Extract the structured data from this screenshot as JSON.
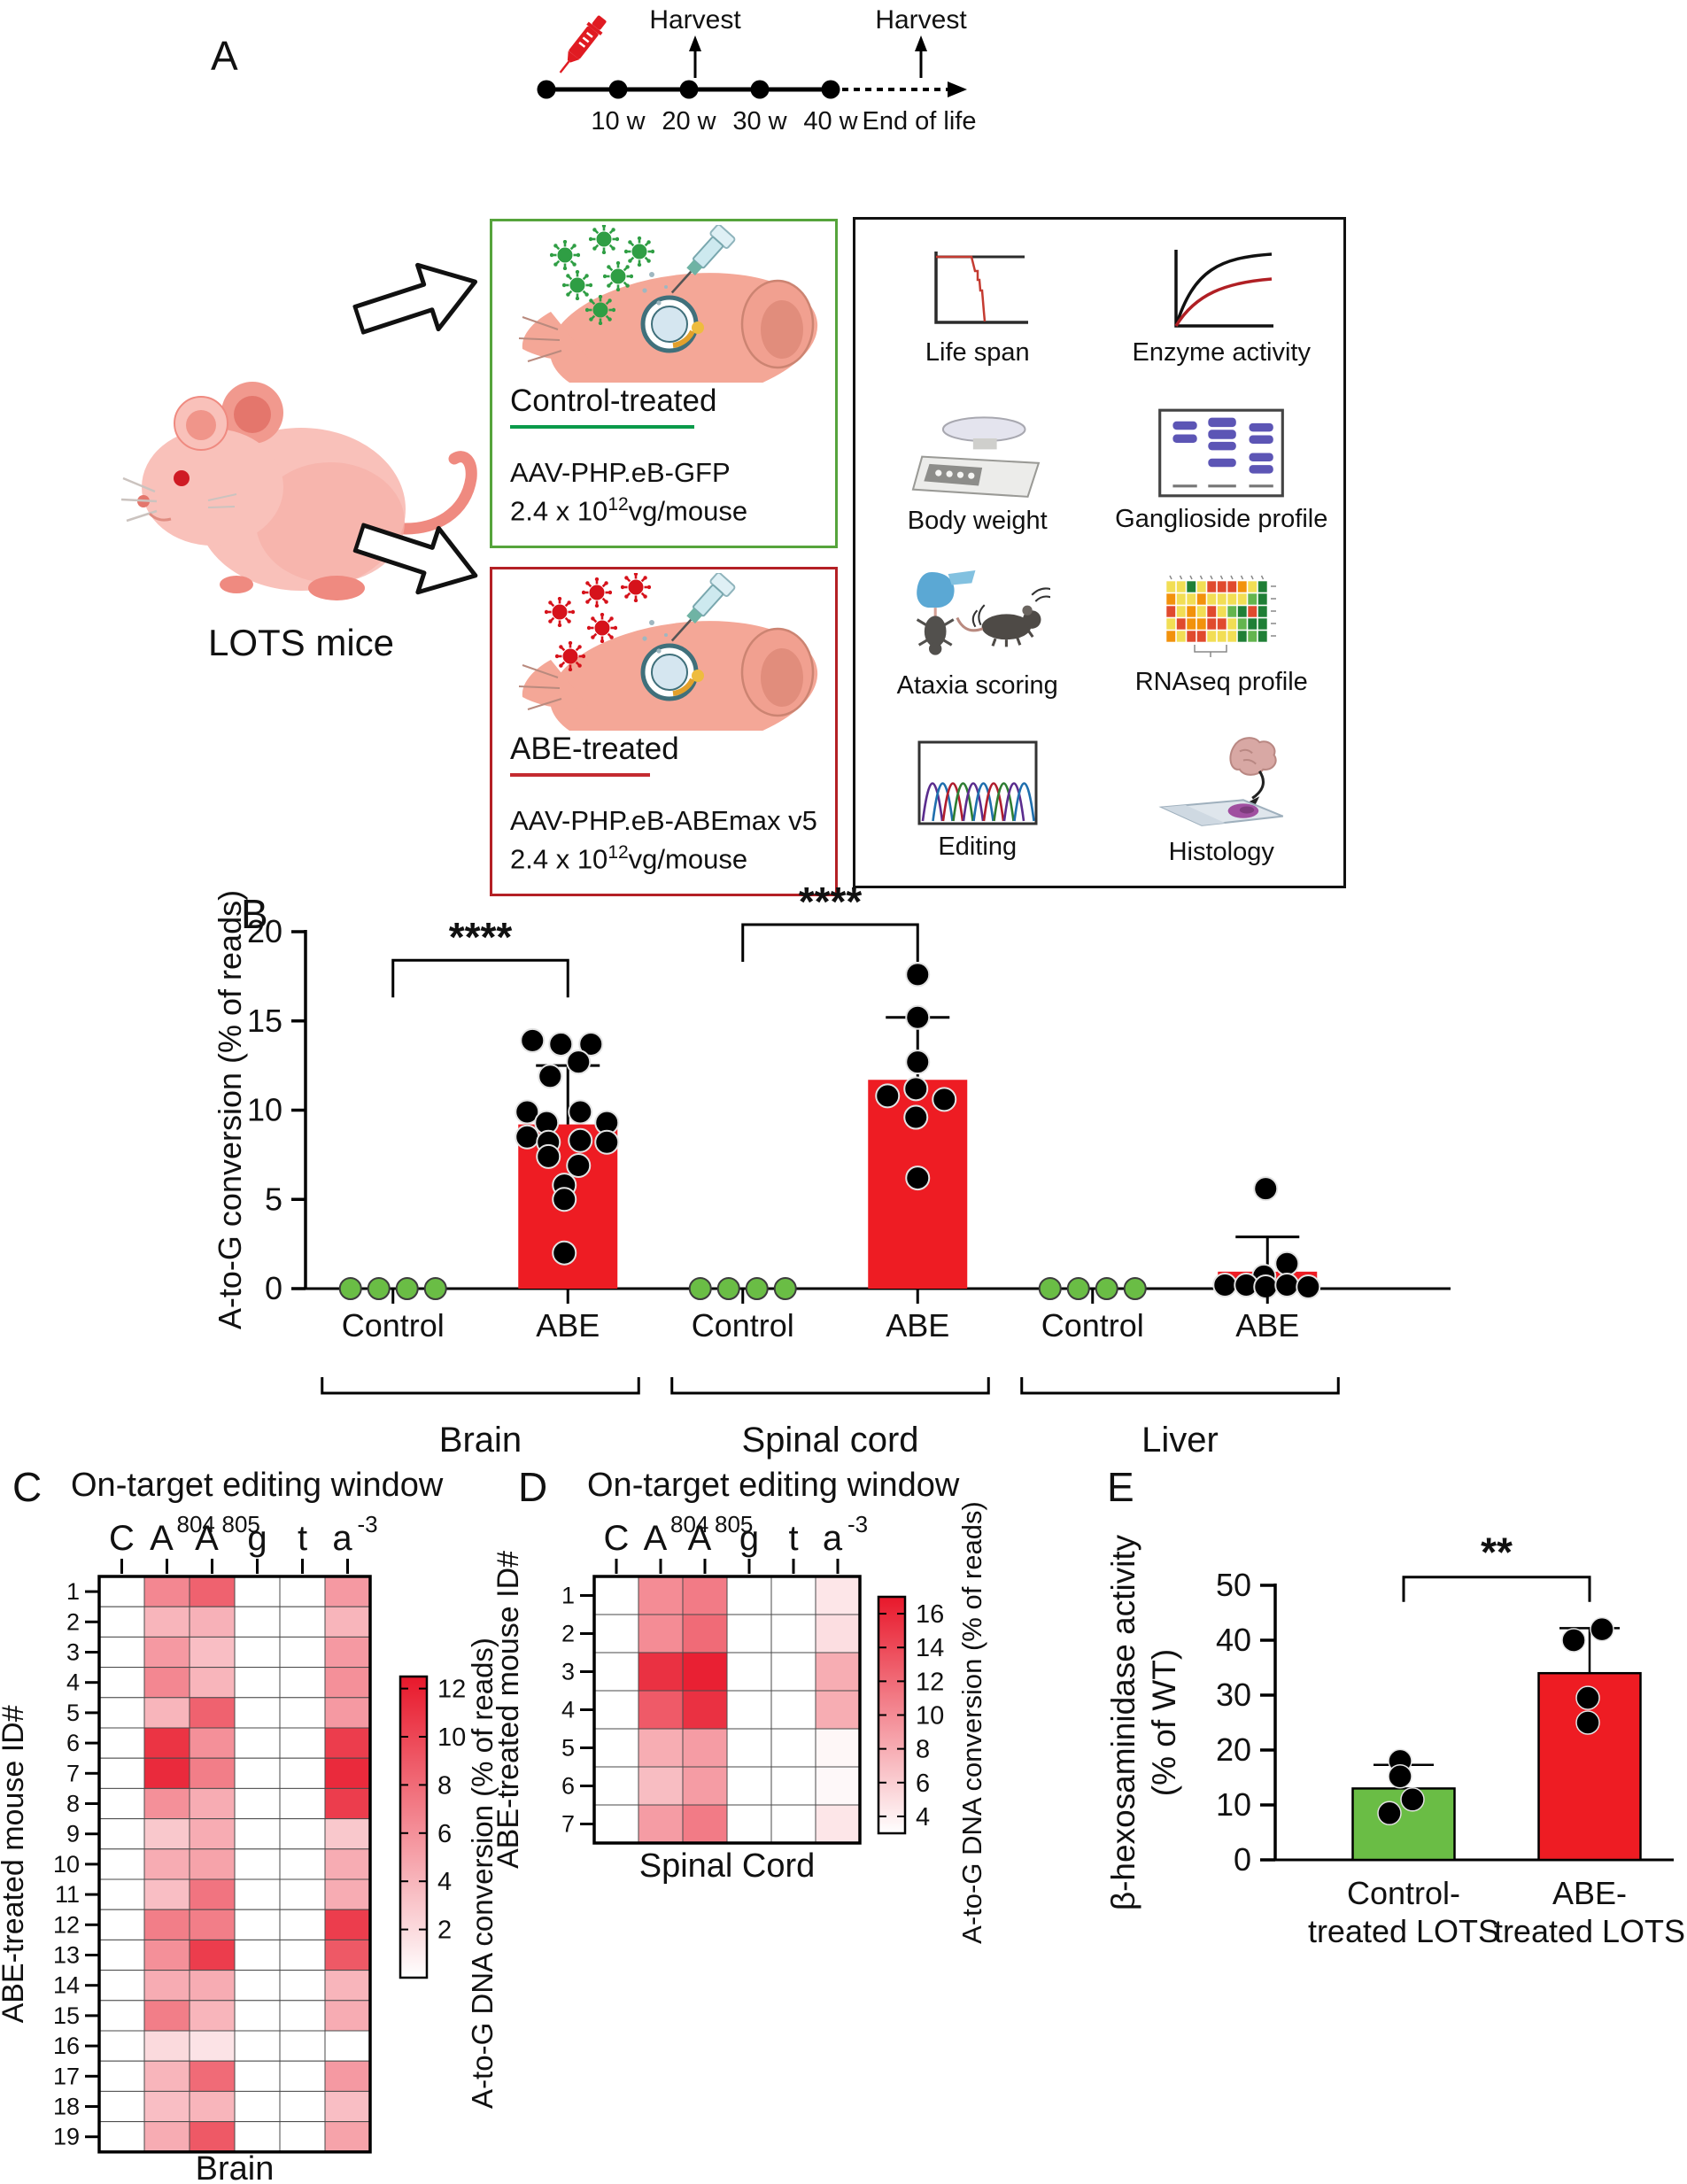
{
  "panel_labels": {
    "a": "A",
    "b": "B",
    "c": "C",
    "d": "D",
    "e": "E"
  },
  "panelA": {
    "timeline": {
      "tick_labels": [
        "10 w",
        "20 w",
        "30 w",
        "40 w"
      ],
      "end_label": "End of life",
      "harvest_labels": [
        "Harvest",
        "Harvest"
      ]
    },
    "mice_label": "LOTS mice",
    "boxes": [
      {
        "id": "control",
        "title": "Control-treated",
        "vector": "AAV-PHP.eB-GFP",
        "dose_mantissa": "2.4 x 10",
        "dose_exponent": "12",
        "dose_unit": "vg/mouse",
        "border_color": "#56a43c",
        "underline_color": "#0a9a4a",
        "underline_width": 208,
        "virus_color": "#2f9e44"
      },
      {
        "id": "abe",
        "title": "ABE-treated",
        "vector": "AAV-PHP.eB-ABEmax v5",
        "dose_mantissa": "2.4 x 10",
        "dose_exponent": "12",
        "dose_unit": "vg/mouse",
        "border_color": "#b42025",
        "underline_color": "#c42b30",
        "underline_width": 158,
        "virus_color": "#d6121b"
      }
    ],
    "readouts": [
      "Life span",
      "Enzyme activity",
      "Body weight",
      "Ganglioside profile",
      "Ataxia scoring",
      "RNAseq profile",
      "Editing",
      "Histology"
    ]
  },
  "chart_data": [
    {
      "id": "panelB",
      "type": "bar",
      "ylabel": "A-to-G conversion (% of reads)",
      "ylim": [
        0,
        20
      ],
      "yticks": [
        0,
        5,
        10,
        15,
        20
      ],
      "groups": [
        {
          "label": "Control",
          "organ": "Brain",
          "bar": false,
          "mean": 0,
          "color": "#6abd45",
          "point_color": "#6abd45",
          "points": [
            [
              0,
              -48
            ],
            [
              0,
              -16
            ],
            [
              0,
              16
            ],
            [
              0,
              48
            ]
          ]
        },
        {
          "label": "ABE",
          "organ": "Brain",
          "bar": true,
          "mean": 9.2,
          "err_top": 12.5,
          "color": "#ee1c23",
          "point_color": "#000000",
          "points": [
            [
              13.9,
              -40
            ],
            [
              13.7,
              -8
            ],
            [
              13.7,
              26
            ],
            [
              12.7,
              12
            ],
            [
              11.9,
              -20
            ],
            [
              9.9,
              -46
            ],
            [
              9.9,
              14
            ],
            [
              9.3,
              -24
            ],
            [
              9.3,
              44
            ],
            [
              8.5,
              -46
            ],
            [
              8.3,
              14
            ],
            [
              8.2,
              -22
            ],
            [
              8.2,
              44
            ],
            [
              7.4,
              -22
            ],
            [
              6.9,
              12
            ],
            [
              5.8,
              -4
            ],
            [
              5.0,
              -4
            ],
            [
              2.0,
              -4
            ]
          ]
        },
        {
          "label": "Control",
          "organ": "Spinal cord",
          "bar": false,
          "mean": 0,
          "color": "#6abd45",
          "point_color": "#6abd45",
          "points": [
            [
              0,
              -48
            ],
            [
              0,
              -16
            ],
            [
              0,
              16
            ],
            [
              0,
              48
            ]
          ]
        },
        {
          "label": "ABE",
          "organ": "Spinal cord",
          "bar": true,
          "mean": 11.7,
          "err_top": 15.2,
          "color": "#ee1c23",
          "point_color": "#000000",
          "points": [
            [
              17.6,
              0
            ],
            [
              15.2,
              0
            ],
            [
              12.7,
              0
            ],
            [
              11.2,
              -2
            ],
            [
              10.8,
              -34
            ],
            [
              10.6,
              30
            ],
            [
              9.6,
              -2
            ],
            [
              6.2,
              0
            ]
          ]
        },
        {
          "label": "Control",
          "organ": "Liver",
          "bar": false,
          "mean": 0,
          "color": "#6abd45",
          "point_color": "#6abd45",
          "points": [
            [
              0,
              -48
            ],
            [
              0,
              -16
            ],
            [
              0,
              16
            ],
            [
              0,
              48
            ]
          ]
        },
        {
          "label": "ABE",
          "organ": "Liver",
          "bar": true,
          "mean": 0.95,
          "err_top": 2.9,
          "color": "#ee1c23",
          "point_color": "#000000",
          "points": [
            [
              5.6,
              -2
            ],
            [
              1.4,
              22
            ],
            [
              0.7,
              -4
            ],
            [
              0.2,
              -48
            ],
            [
              0.2,
              -24
            ],
            [
              0.1,
              -2
            ],
            [
              0.2,
              22
            ],
            [
              0.1,
              46
            ]
          ]
        }
      ],
      "organ_brackets": [
        {
          "label": "Brain",
          "groups": [
            0,
            1
          ]
        },
        {
          "label": "Spinal cord",
          "groups": [
            2,
            3
          ]
        },
        {
          "label": "Liver",
          "groups": [
            4,
            5
          ]
        }
      ],
      "significance": [
        {
          "groups": [
            0,
            1
          ],
          "label": "****",
          "y": 18.4
        },
        {
          "groups": [
            2,
            3
          ],
          "label": "****",
          "y": 20.4
        }
      ]
    },
    {
      "id": "panelC",
      "type": "heatmap",
      "title": "On-target editing window",
      "col_labels": [
        {
          "b": "C",
          "s": ""
        },
        {
          "b": "A",
          "s": "804"
        },
        {
          "b": "A",
          "s": "805"
        },
        {
          "b": "g",
          "s": ""
        },
        {
          "b": "t",
          "s": ""
        },
        {
          "b": "a",
          "s": "-3"
        }
      ],
      "row_labels": [
        "1",
        "2",
        "3",
        "4",
        "5",
        "6",
        "7",
        "8",
        "9",
        "10",
        "11",
        "12",
        "13",
        "14",
        "15",
        "16",
        "17",
        "18",
        "19"
      ],
      "ylabel": "ABE-treated mouse ID#",
      "xlabel": "Brain",
      "max_color": "#e8182b",
      "cbar": {
        "label": "A-to-G DNA conversion (% of reads)",
        "ticks": [
          2,
          4,
          6,
          8,
          10,
          12
        ],
        "vmin": 0,
        "vmax": 12.5
      },
      "values": [
        [
          0,
          6.5,
          8.5,
          0,
          0,
          5.5
        ],
        [
          0,
          4.0,
          4.2,
          0,
          0,
          4.0
        ],
        [
          0,
          5.5,
          3.5,
          0,
          0,
          5.5
        ],
        [
          0,
          6.5,
          4.0,
          0,
          0,
          6.0
        ],
        [
          0,
          4.0,
          8.5,
          0,
          0,
          5.5
        ],
        [
          0,
          11.0,
          6.0,
          0,
          0,
          10.5
        ],
        [
          0,
          11.5,
          7.0,
          0,
          0,
          11.5
        ],
        [
          0,
          6.0,
          4.5,
          0,
          0,
          10.5
        ],
        [
          0,
          3.0,
          4.5,
          0,
          0,
          3.0
        ],
        [
          0,
          4.5,
          5.0,
          0,
          0,
          4.5
        ],
        [
          0,
          3.5,
          7.5,
          0,
          0,
          4.5
        ],
        [
          0,
          7.0,
          7.0,
          0,
          0,
          10.5
        ],
        [
          0,
          6.0,
          10.5,
          0,
          0,
          9.0
        ],
        [
          0,
          4.5,
          4.5,
          0,
          0,
          4.0
        ],
        [
          0,
          7.0,
          4.0,
          0,
          0,
          4.5
        ],
        [
          0,
          2.0,
          1.5,
          0,
          0,
          0
        ],
        [
          0,
          4.0,
          8.0,
          0,
          0,
          5.5
        ],
        [
          0,
          3.5,
          4.0,
          0,
          0,
          3.5
        ],
        [
          0,
          4.5,
          9.0,
          0,
          0,
          5.0
        ]
      ]
    },
    {
      "id": "panelD",
      "type": "heatmap",
      "title": "On-target editing window",
      "col_labels": [
        {
          "b": "C",
          "s": ""
        },
        {
          "b": "A",
          "s": "804"
        },
        {
          "b": "A",
          "s": "805"
        },
        {
          "b": "g",
          "s": ""
        },
        {
          "b": "t",
          "s": ""
        },
        {
          "b": "a",
          "s": "-3"
        }
      ],
      "row_labels": [
        "1",
        "2",
        "3",
        "4",
        "5",
        "6",
        "7"
      ],
      "ylabel": "ABE-treated mouse ID#",
      "xlabel": "Spinal Cord",
      "max_color": "#e8182b",
      "cbar": {
        "label": "A-to-G DNA conversion (% of reads)",
        "ticks": [
          4,
          6,
          8,
          10,
          12,
          14,
          16
        ],
        "vmin": 3,
        "vmax": 17
      },
      "values": [
        [
          0,
          10.0,
          11.0,
          0,
          0,
          4.5
        ],
        [
          0,
          10.0,
          12.0,
          0,
          0,
          5.0
        ],
        [
          0,
          15.5,
          16.5,
          0,
          0,
          8.0
        ],
        [
          0,
          13.0,
          15.5,
          0,
          0,
          8.0
        ],
        [
          0,
          8.0,
          9.0,
          0,
          0,
          3.5
        ],
        [
          0,
          7.0,
          9.0,
          0,
          0,
          3.2
        ],
        [
          0,
          9.0,
          11.0,
          0,
          0,
          4.5
        ]
      ]
    },
    {
      "id": "panelE",
      "type": "bar",
      "ylabel_lines": [
        "β-hexosaminidase activity",
        "(% of WT)"
      ],
      "ylim": [
        0,
        50
      ],
      "yticks": [
        0,
        10,
        20,
        30,
        40,
        50
      ],
      "groups": [
        {
          "label_lines": [
            "Control-",
            "treated LOTS"
          ],
          "mean": 13,
          "err_top": 17.3,
          "color": "#6abd45",
          "points": [
            [
              18,
              -4
            ],
            [
              15.2,
              -4
            ],
            [
              11,
              10
            ],
            [
              8.5,
              -16
            ]
          ]
        },
        {
          "label_lines": [
            "ABE-",
            "treated LOTS"
          ],
          "mean": 34,
          "err_top": 42.2,
          "color": "#ee1c23",
          "points": [
            [
              42,
              14
            ],
            [
              40,
              -18
            ],
            [
              29.5,
              -2
            ],
            [
              25,
              -2
            ]
          ]
        }
      ],
      "significance": [
        {
          "groups": [
            0,
            1
          ],
          "label": "**",
          "y": 51.5
        }
      ]
    }
  ]
}
